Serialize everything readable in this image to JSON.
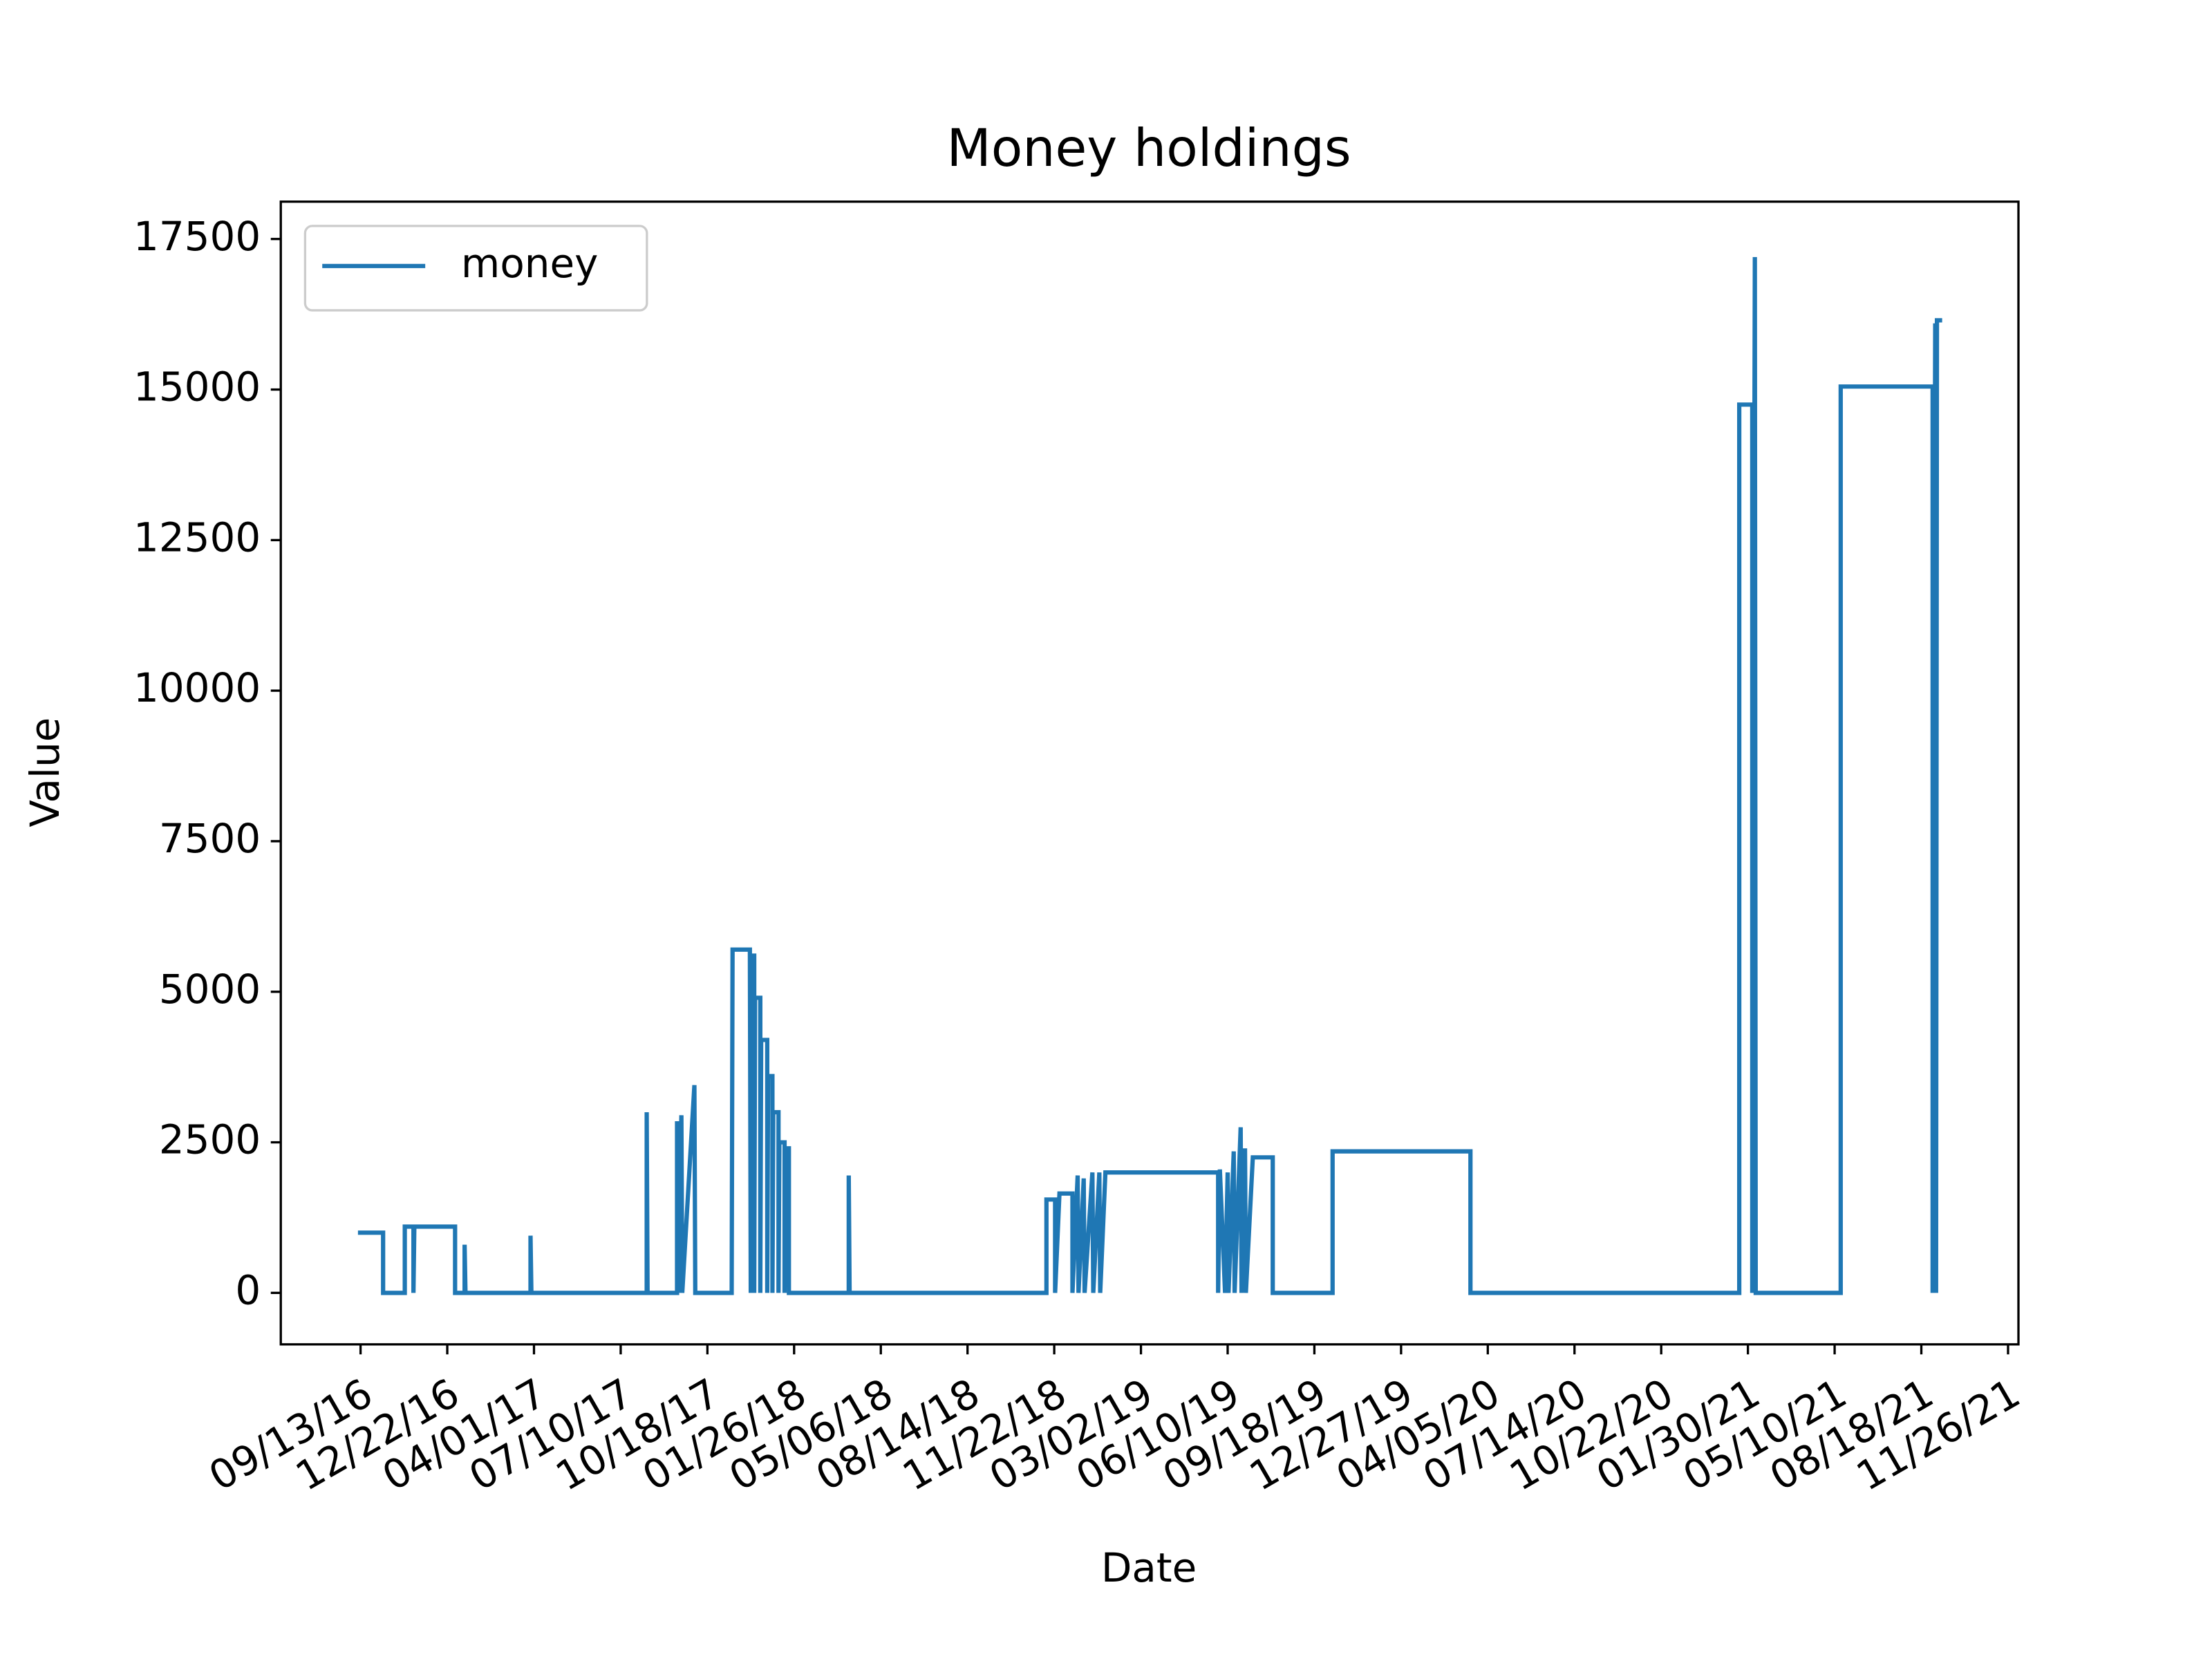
{
  "chart_data": {
    "type": "line",
    "title": "Money holdings",
    "x_label": "Date",
    "y_label": "Value",
    "legend": "upper left",
    "grid": false,
    "xlim": [
      "06/13/16",
      "12/08/21"
    ],
    "xticks": [
      "09/13/16",
      "12/22/16",
      "04/01/17",
      "07/10/17",
      "10/18/17",
      "01/26/18",
      "05/06/18",
      "08/14/18",
      "11/22/18",
      "03/02/19",
      "06/10/19",
      "09/18/19",
      "12/27/19",
      "04/05/20",
      "07/14/20",
      "10/22/20",
      "01/30/21",
      "05/10/21",
      "08/18/21",
      "11/26/21"
    ],
    "ylim": [
      -855,
      18120
    ],
    "yticks": [
      0,
      2500,
      5000,
      7500,
      10000,
      12500,
      15000,
      17500
    ],
    "x": [
      "09/10/16",
      "10/09/16",
      "10/09/16",
      "11/03/16",
      "11/03/16",
      "11/13/16",
      "11/13/16",
      "11/14/16",
      "12/31/16",
      "12/31/16",
      "01/11/17",
      "01/11/17",
      "01/12/17",
      "03/28/17",
      "03/28/17",
      "03/29/17",
      "08/09/17",
      "08/09/17",
      "08/10/17",
      "09/13/17",
      "09/13/17",
      "09/14/17",
      "09/18/17",
      "09/19/17",
      "10/03/17",
      "10/04/17",
      "11/15/17",
      "11/16/17",
      "12/06/17",
      "12/07/17",
      "12/08/17",
      "12/11/17",
      "12/11/17",
      "12/12/17",
      "12/18/17",
      "12/18/17",
      "12/19/17",
      "12/26/17",
      "12/26/17",
      "12/27/17",
      "01/01/18",
      "01/01/18",
      "01/02/18",
      "01/08/18",
      "01/08/18",
      "01/09/18",
      "01/15/18",
      "01/15/18",
      "01/16/18",
      "01/20/18",
      "01/20/18",
      "03/30/18",
      "03/30/18",
      "03/31/18",
      "11/13/18",
      "11/13/18",
      "11/23/18",
      "11/23/18",
      "11/28/18",
      "12/13/18",
      "12/13/18",
      "12/19/18",
      "12/20/18",
      "12/26/18",
      "12/27/18",
      "01/05/19",
      "01/06/19",
      "01/13/19",
      "01/14/19",
      "01/20/19",
      "05/30/19",
      "05/30/19",
      "06/01/19",
      "06/07/19",
      "06/10/19",
      "06/11/19",
      "06/17/19",
      "06/18/19",
      "06/25/19",
      "06/26/19",
      "06/30/19",
      "07/01/19",
      "07/09/19",
      "08/01/19",
      "08/01/19",
      "10/09/19",
      "10/09/19",
      "03/16/20",
      "03/16/20",
      "01/20/21",
      "01/20/21",
      "02/04/21",
      "02/04/21",
      "02/07/21",
      "02/08/21",
      "05/17/21",
      "05/17/21",
      "08/31/21",
      "08/31/21",
      "09/03/21",
      "09/04/21",
      "09/05/21",
      "09/11/21"
    ],
    "series": [
      {
        "name": "money",
        "color": "#1f77b4",
        "values": [
          1000,
          1000,
          0,
          0,
          1100,
          1100,
          0,
          1100,
          1100,
          0,
          0,
          800,
          0,
          0,
          950,
          0,
          0,
          3000,
          0,
          0,
          2850,
          0,
          2950,
          0,
          3450,
          0,
          0,
          5700,
          5700,
          0,
          5600,
          5600,
          0,
          4900,
          4900,
          0,
          4200,
          4200,
          0,
          3600,
          3600,
          0,
          3000,
          3000,
          0,
          2500,
          2500,
          0,
          2400,
          2400,
          0,
          0,
          1950,
          0,
          0,
          1550,
          1550,
          0,
          1650,
          1650,
          0,
          1950,
          0,
          1900,
          0,
          2000,
          0,
          2000,
          0,
          2000,
          2000,
          0,
          2050,
          0,
          2000,
          0,
          2350,
          0,
          2750,
          0,
          2400,
          0,
          2250,
          2250,
          0,
          0,
          2350,
          2350,
          0,
          0,
          14750,
          14750,
          0,
          17200,
          0,
          0,
          15050,
          15050,
          0,
          16100,
          0,
          16150,
          16150
        ]
      }
    ]
  }
}
